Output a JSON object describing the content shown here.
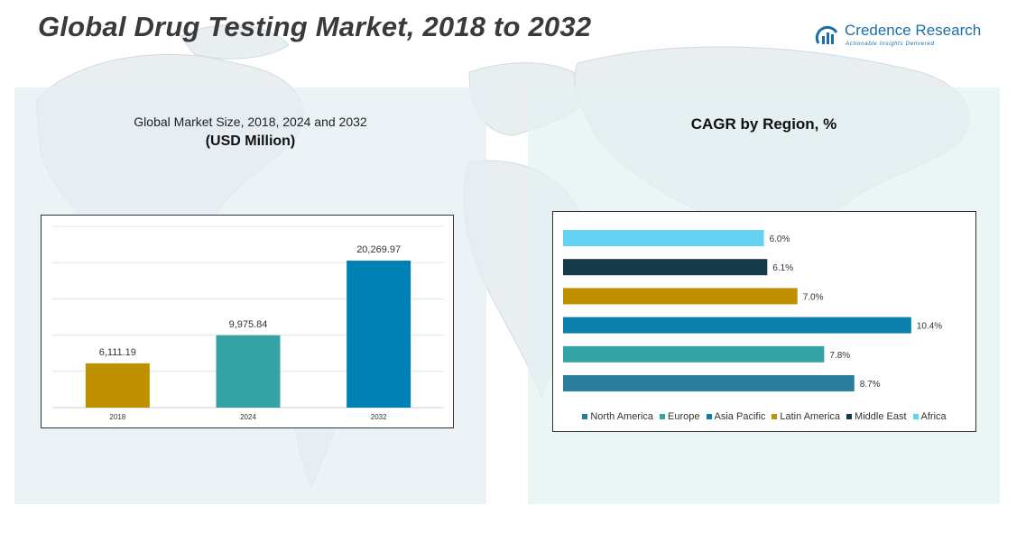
{
  "header": {
    "title": "Global Drug Testing Market, 2018 to 2032",
    "logo_name": "Credence Research",
    "logo_tagline": "Actionable Insights Delivered"
  },
  "colors": {
    "title": "#3a3a3a",
    "brand": "#1b6fa6"
  },
  "left_panel": {
    "subtitle": "Global Market Size, 2018, 2024 and 2032",
    "unit": "(USD Million)"
  },
  "right_panel": {
    "title": "CAGR by Region, %"
  },
  "chart_data": [
    {
      "type": "bar",
      "title": "Global Market Size, 2018, 2024 and 2032",
      "ylabel": "USD Million",
      "categories": [
        "2018",
        "2024",
        "2032"
      ],
      "values": [
        6111.19,
        9975.84,
        20269.97
      ],
      "value_labels": [
        "6,111.19",
        "9,975.84",
        "20,269.97"
      ],
      "colors": [
        "#bf9000",
        "#35a3a3",
        "#0081b4"
      ],
      "ylim": [
        0,
        25000
      ],
      "grid": true
    },
    {
      "type": "bar",
      "orientation": "horizontal",
      "title": "CAGR by Region, %",
      "categories": [
        "Africa",
        "Middle East",
        "Latin America",
        "Asia Pacific",
        "Europe",
        "North America"
      ],
      "values": [
        6.0,
        6.1,
        7.0,
        10.4,
        7.8,
        8.7
      ],
      "value_labels": [
        "6.0%",
        "6.1%",
        "7.0%",
        "10.4%",
        "7.8%",
        "8.7%"
      ],
      "colors": [
        "#63d2f4",
        "#173a4a",
        "#bf9000",
        "#0d7fab",
        "#35a3a3",
        "#2b7d9c"
      ],
      "legend": [
        {
          "label": "North America",
          "color": "#2b7d9c"
        },
        {
          "label": "Europe",
          "color": "#35a3a3"
        },
        {
          "label": "Asia Pacific",
          "color": "#0d7fab"
        },
        {
          "label": "Latin America",
          "color": "#bf9000"
        },
        {
          "label": "Middle East",
          "color": "#173a4a"
        },
        {
          "label": "Africa",
          "color": "#63d2f4"
        }
      ],
      "legend_position": "bottom",
      "xlim": [
        0,
        12
      ]
    }
  ]
}
